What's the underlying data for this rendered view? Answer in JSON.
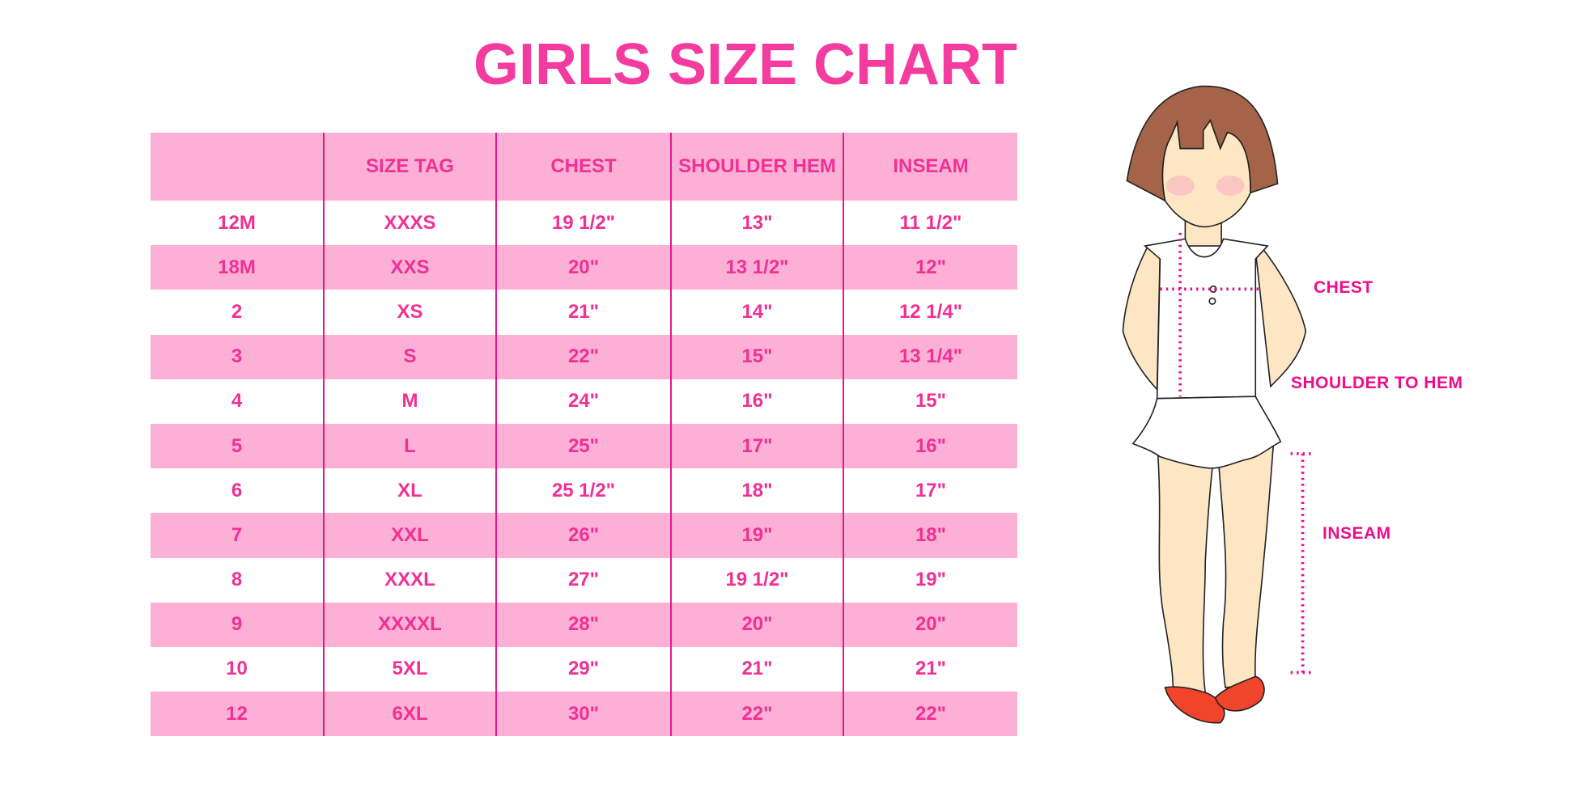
{
  "title": "GIRLS SIZE CHART",
  "table": {
    "headers": [
      "",
      "SIZE TAG",
      "CHEST",
      "SHOULDER HEM",
      "INSEAM"
    ],
    "rows": [
      [
        "12M",
        "XXXS",
        "19 1/2\"",
        "13\"",
        "11 1/2\""
      ],
      [
        "18M",
        "XXS",
        "20\"",
        "13 1/2\"",
        "12\""
      ],
      [
        "2",
        "XS",
        "21\"",
        "14\"",
        "12 1/4\""
      ],
      [
        "3",
        "S",
        "22\"",
        "15\"",
        "13 1/4\""
      ],
      [
        "4",
        "M",
        "24\"",
        "16\"",
        "15\""
      ],
      [
        "5",
        "L",
        "25\"",
        "17\"",
        "16\""
      ],
      [
        "6",
        "XL",
        "25 1/2\"",
        "18\"",
        "17\""
      ],
      [
        "7",
        "XXL",
        "26\"",
        "19\"",
        "18\""
      ],
      [
        "8",
        "XXXL",
        "27\"",
        "19 1/2\"",
        "19\""
      ],
      [
        "9",
        "XXXXL",
        "28\"",
        "20\"",
        "20\""
      ],
      [
        "10",
        "5XL",
        "29\"",
        "21\"",
        "21\""
      ],
      [
        "12",
        "6XL",
        "30\"",
        "22\"",
        "22\""
      ]
    ]
  },
  "diagram": {
    "labels": {
      "chest": "CHEST",
      "shoulder_to_hem": "SHOULDER TO HEM",
      "inseam": "INSEAM"
    }
  },
  "colors": {
    "accent": "#f43ca0",
    "row_fill": "#fdb0d6",
    "label": "#ee0c8c"
  }
}
